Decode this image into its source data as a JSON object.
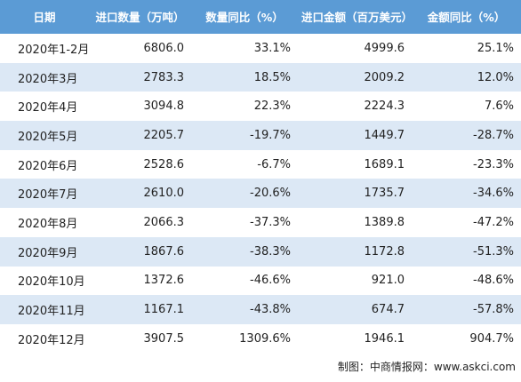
{
  "table": {
    "header": [
      "日期",
      "进口数量（万吨）",
      "数量同比（%）",
      "进口金额（百万美元）",
      "金额同比（%）"
    ],
    "rows": [
      [
        "2020年1-2月",
        "6806.0",
        "33.1%",
        "4999.6",
        "25.1%"
      ],
      [
        "2020年3月",
        "2783.3",
        "18.5%",
        "2009.2",
        "12.0%"
      ],
      [
        "2020年4月",
        "3094.8",
        "22.3%",
        "2224.3",
        "7.6%"
      ],
      [
        "2020年5月",
        "2205.7",
        "-19.7%",
        "1449.7",
        "-28.7%"
      ],
      [
        "2020年6月",
        "2528.6",
        "-6.7%",
        "1689.1",
        "-23.3%"
      ],
      [
        "2020年7月",
        "2610.0",
        "-20.6%",
        "1735.7",
        "-34.6%"
      ],
      [
        "2020年8月",
        "2066.3",
        "-37.3%",
        "1389.8",
        "-47.2%"
      ],
      [
        "2020年9月",
        "1867.6",
        "-38.3%",
        "1172.8",
        "-51.3%"
      ],
      [
        "2020年10月",
        "1372.6",
        "-46.6%",
        "921.0",
        "-48.6%"
      ],
      [
        "2020年11月",
        "1167.1",
        "-43.8%",
        "674.7",
        "-57.8%"
      ],
      [
        "2020年12月",
        "3907.5",
        "1309.6%",
        "1946.1",
        "904.7%"
      ]
    ]
  },
  "footer": "制图：中商情报网：www.askci.com"
}
